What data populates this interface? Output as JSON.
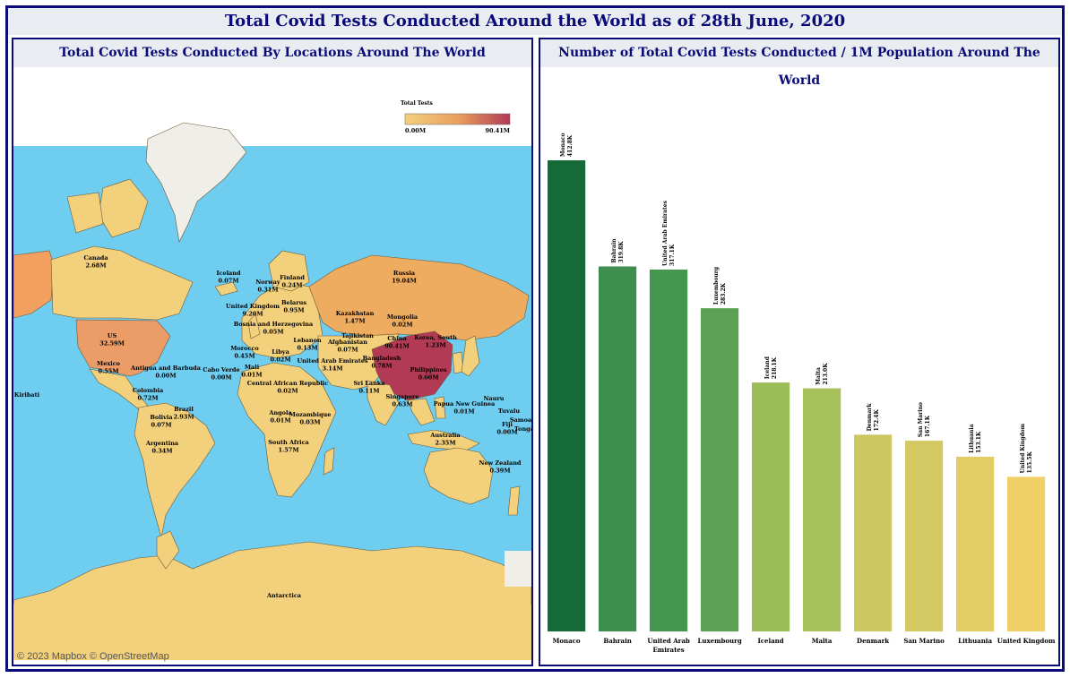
{
  "main_title": "Total Covid Tests Conducted Around the World as of 28th June, 2020",
  "map_panel": {
    "title": "Total Covid Tests Conducted By Locations Around The World",
    "attribution": "© 2023 Mapbox  © OpenStreetMap",
    "colorbar": {
      "title": "Total Tests",
      "min_label": "0.00M",
      "max_label": "90.41M",
      "colors": [
        "#f2d07e",
        "#eaa05f",
        "#b23a55"
      ]
    },
    "ocean_color": "#6fcdf0",
    "land_color": "#f3d07c",
    "labels": [
      {
        "name": "Canada",
        "value": "2.68M"
      },
      {
        "name": "US",
        "value": "32.59M"
      },
      {
        "name": "Mexico",
        "value": "0.55M"
      },
      {
        "name": "Antigua and Barbuda",
        "value": "0.00M"
      },
      {
        "name": "Colombia",
        "value": "0.72M"
      },
      {
        "name": "Brazil",
        "value": "2.93M"
      },
      {
        "name": "Bolivia",
        "value": "0.07M"
      },
      {
        "name": "Argentina",
        "value": "0.34M"
      },
      {
        "name": "Kiribati",
        "value": ""
      },
      {
        "name": "Iceland",
        "value": "0.07M"
      },
      {
        "name": "Norway",
        "value": "0.31M"
      },
      {
        "name": "Finland",
        "value": "0.24M"
      },
      {
        "name": "United Kingdom",
        "value": "9.20M"
      },
      {
        "name": "Belarus",
        "value": "0.95M"
      },
      {
        "name": "Bosnia and Herzegovina",
        "value": "0.05M"
      },
      {
        "name": "Morocco",
        "value": "0.45M"
      },
      {
        "name": "Cabo Verde",
        "value": "0.00M"
      },
      {
        "name": "Mali",
        "value": "0.01M"
      },
      {
        "name": "Libya",
        "value": "0.02M"
      },
      {
        "name": "Lebanon",
        "value": "0.13M"
      },
      {
        "name": "Central African Republic",
        "value": "0.02M"
      },
      {
        "name": "United Arab Emirates",
        "value": "3.14M"
      },
      {
        "name": "Angola",
        "value": "0.01M"
      },
      {
        "name": "Mozambique",
        "value": "0.03M"
      },
      {
        "name": "South Africa",
        "value": "1.57M"
      },
      {
        "name": "Russia",
        "value": "19.04M"
      },
      {
        "name": "Kazakhstan",
        "value": "1.47M"
      },
      {
        "name": "Mongolia",
        "value": "0.02M"
      },
      {
        "name": "Afghanistan",
        "value": "0.07M"
      },
      {
        "name": "Tajikistan",
        "value": ""
      },
      {
        "name": "China",
        "value": "90.41M"
      },
      {
        "name": "Korea, South",
        "value": "1.23M"
      },
      {
        "name": "Bangladesh",
        "value": "0.78M"
      },
      {
        "name": "Philippines",
        "value": "0.60M"
      },
      {
        "name": "Sri Lanka",
        "value": "0.11M"
      },
      {
        "name": "Singapore",
        "value": "0.63M"
      },
      {
        "name": "Papua New Guinea",
        "value": "0.01M"
      },
      {
        "name": "Nauru",
        "value": ""
      },
      {
        "name": "Tuvalu",
        "value": ""
      },
      {
        "name": "Samoa",
        "value": ""
      },
      {
        "name": "Fiji",
        "value": "0.00M"
      },
      {
        "name": "Tonga",
        "value": ""
      },
      {
        "name": "Australia",
        "value": "2.35M"
      },
      {
        "name": "New Zealand",
        "value": "0.39M"
      },
      {
        "name": "Antarctica",
        "value": ""
      }
    ]
  },
  "bar_panel": {
    "title": "Number of Total Covid Tests Conducted / 1M Population Around The World"
  },
  "chart_data": {
    "type": "bar",
    "categories": [
      "Monaco",
      "Bahrain",
      "United Arab Emirates",
      "Luxembourg",
      "Iceland",
      "Malta",
      "Denmark",
      "San Marino",
      "Lithuania",
      "United Kingdom"
    ],
    "values": [
      412.8,
      319.8,
      317.1,
      283.2,
      218.1,
      213.0,
      172.4,
      167.1,
      153.1,
      135.5
    ],
    "value_labels": [
      "412.8K",
      "319.8K",
      "317.1K",
      "283.2K",
      "218.1K",
      "213.0K",
      "172.4K",
      "167.1K",
      "153.1K",
      "135.5K"
    ],
    "colors": [
      "#146b38",
      "#3e8f4f",
      "#45964f",
      "#5aa154",
      "#9bbd58",
      "#a6c05a",
      "#cdc761",
      "#d4c862",
      "#e2cd64",
      "#f0d066"
    ],
    "ylim": [
      0,
      412.8
    ],
    "xlabel": "",
    "ylabel": ""
  }
}
